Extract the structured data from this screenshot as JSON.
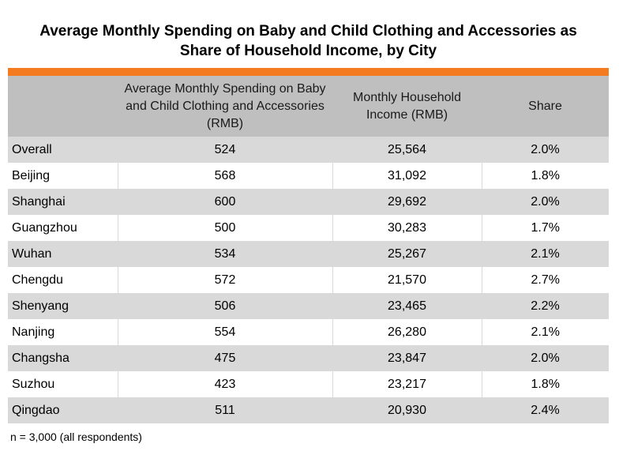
{
  "title": {
    "line1": "Average Monthly Spending on Baby and Child Clothing and Accessories as",
    "line2": "Share of Household Income, by City"
  },
  "accent_color": "#f47b20",
  "table": {
    "headers": [
      "",
      "Average Monthly Spending on Baby and Child Clothing and Accessories (RMB)",
      "Monthly Household Income (RMB)",
      "Share"
    ],
    "rows": [
      {
        "city": "Overall",
        "spending": "524",
        "income": "25,564",
        "share": "2.0%"
      },
      {
        "city": "Beijing",
        "spending": "568",
        "income": "31,092",
        "share": "1.8%"
      },
      {
        "city": "Shanghai",
        "spending": "600",
        "income": "29,692",
        "share": "2.0%"
      },
      {
        "city": "Guangzhou",
        "spending": "500",
        "income": "30,283",
        "share": "1.7%"
      },
      {
        "city": "Wuhan",
        "spending": "534",
        "income": "25,267",
        "share": "2.1%"
      },
      {
        "city": "Chengdu",
        "spending": "572",
        "income": "21,570",
        "share": "2.7%"
      },
      {
        "city": "Shenyang",
        "spending": "506",
        "income": "23,465",
        "share": "2.2%"
      },
      {
        "city": "Nanjing",
        "spending": "554",
        "income": "26,280",
        "share": "2.1%"
      },
      {
        "city": "Changsha",
        "spending": "475",
        "income": "23,847",
        "share": "2.0%"
      },
      {
        "city": "Suzhou",
        "spending": "423",
        "income": "23,217",
        "share": "1.8%"
      },
      {
        "city": "Qingdao",
        "spending": "511",
        "income": "20,930",
        "share": "2.4%"
      }
    ]
  },
  "note": "n = 3,000 (all respondents)"
}
